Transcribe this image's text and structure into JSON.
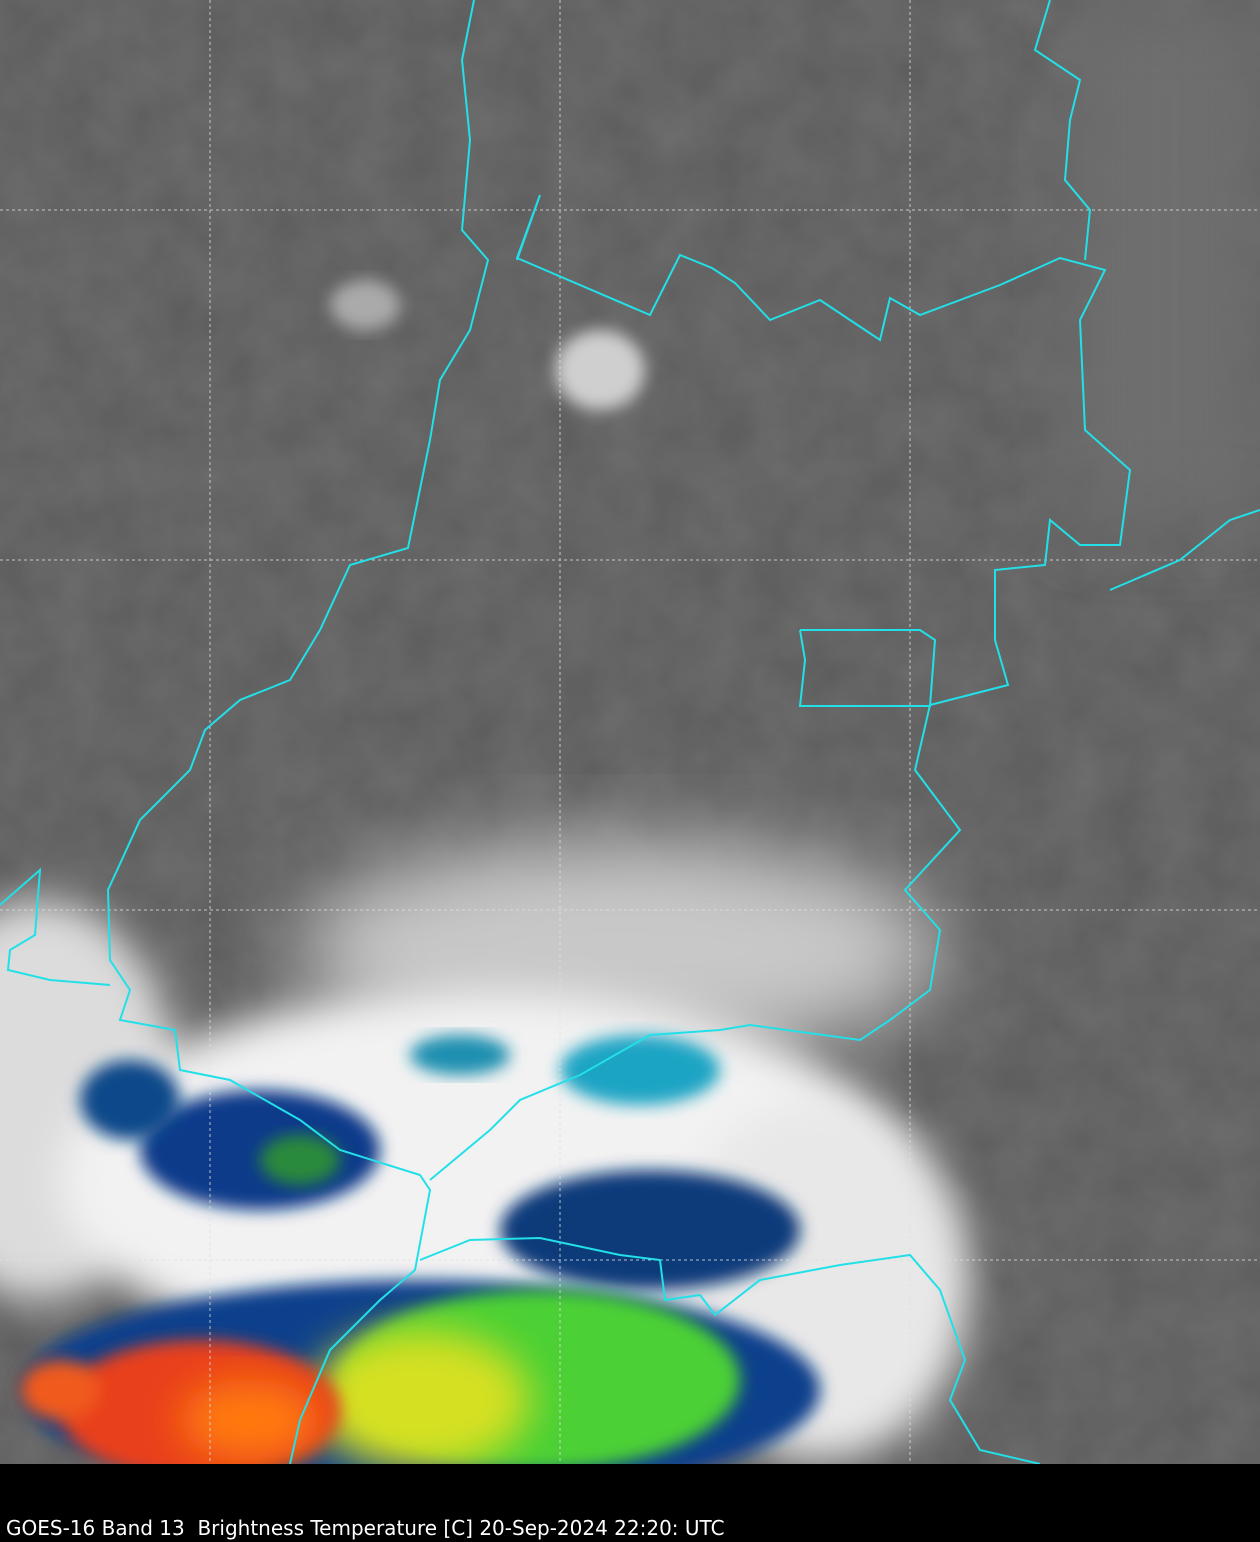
{
  "caption": "GOES-16 Band 13  Brightness Temperature [C] 20-Sep-2024 22:20: UTC"
}
